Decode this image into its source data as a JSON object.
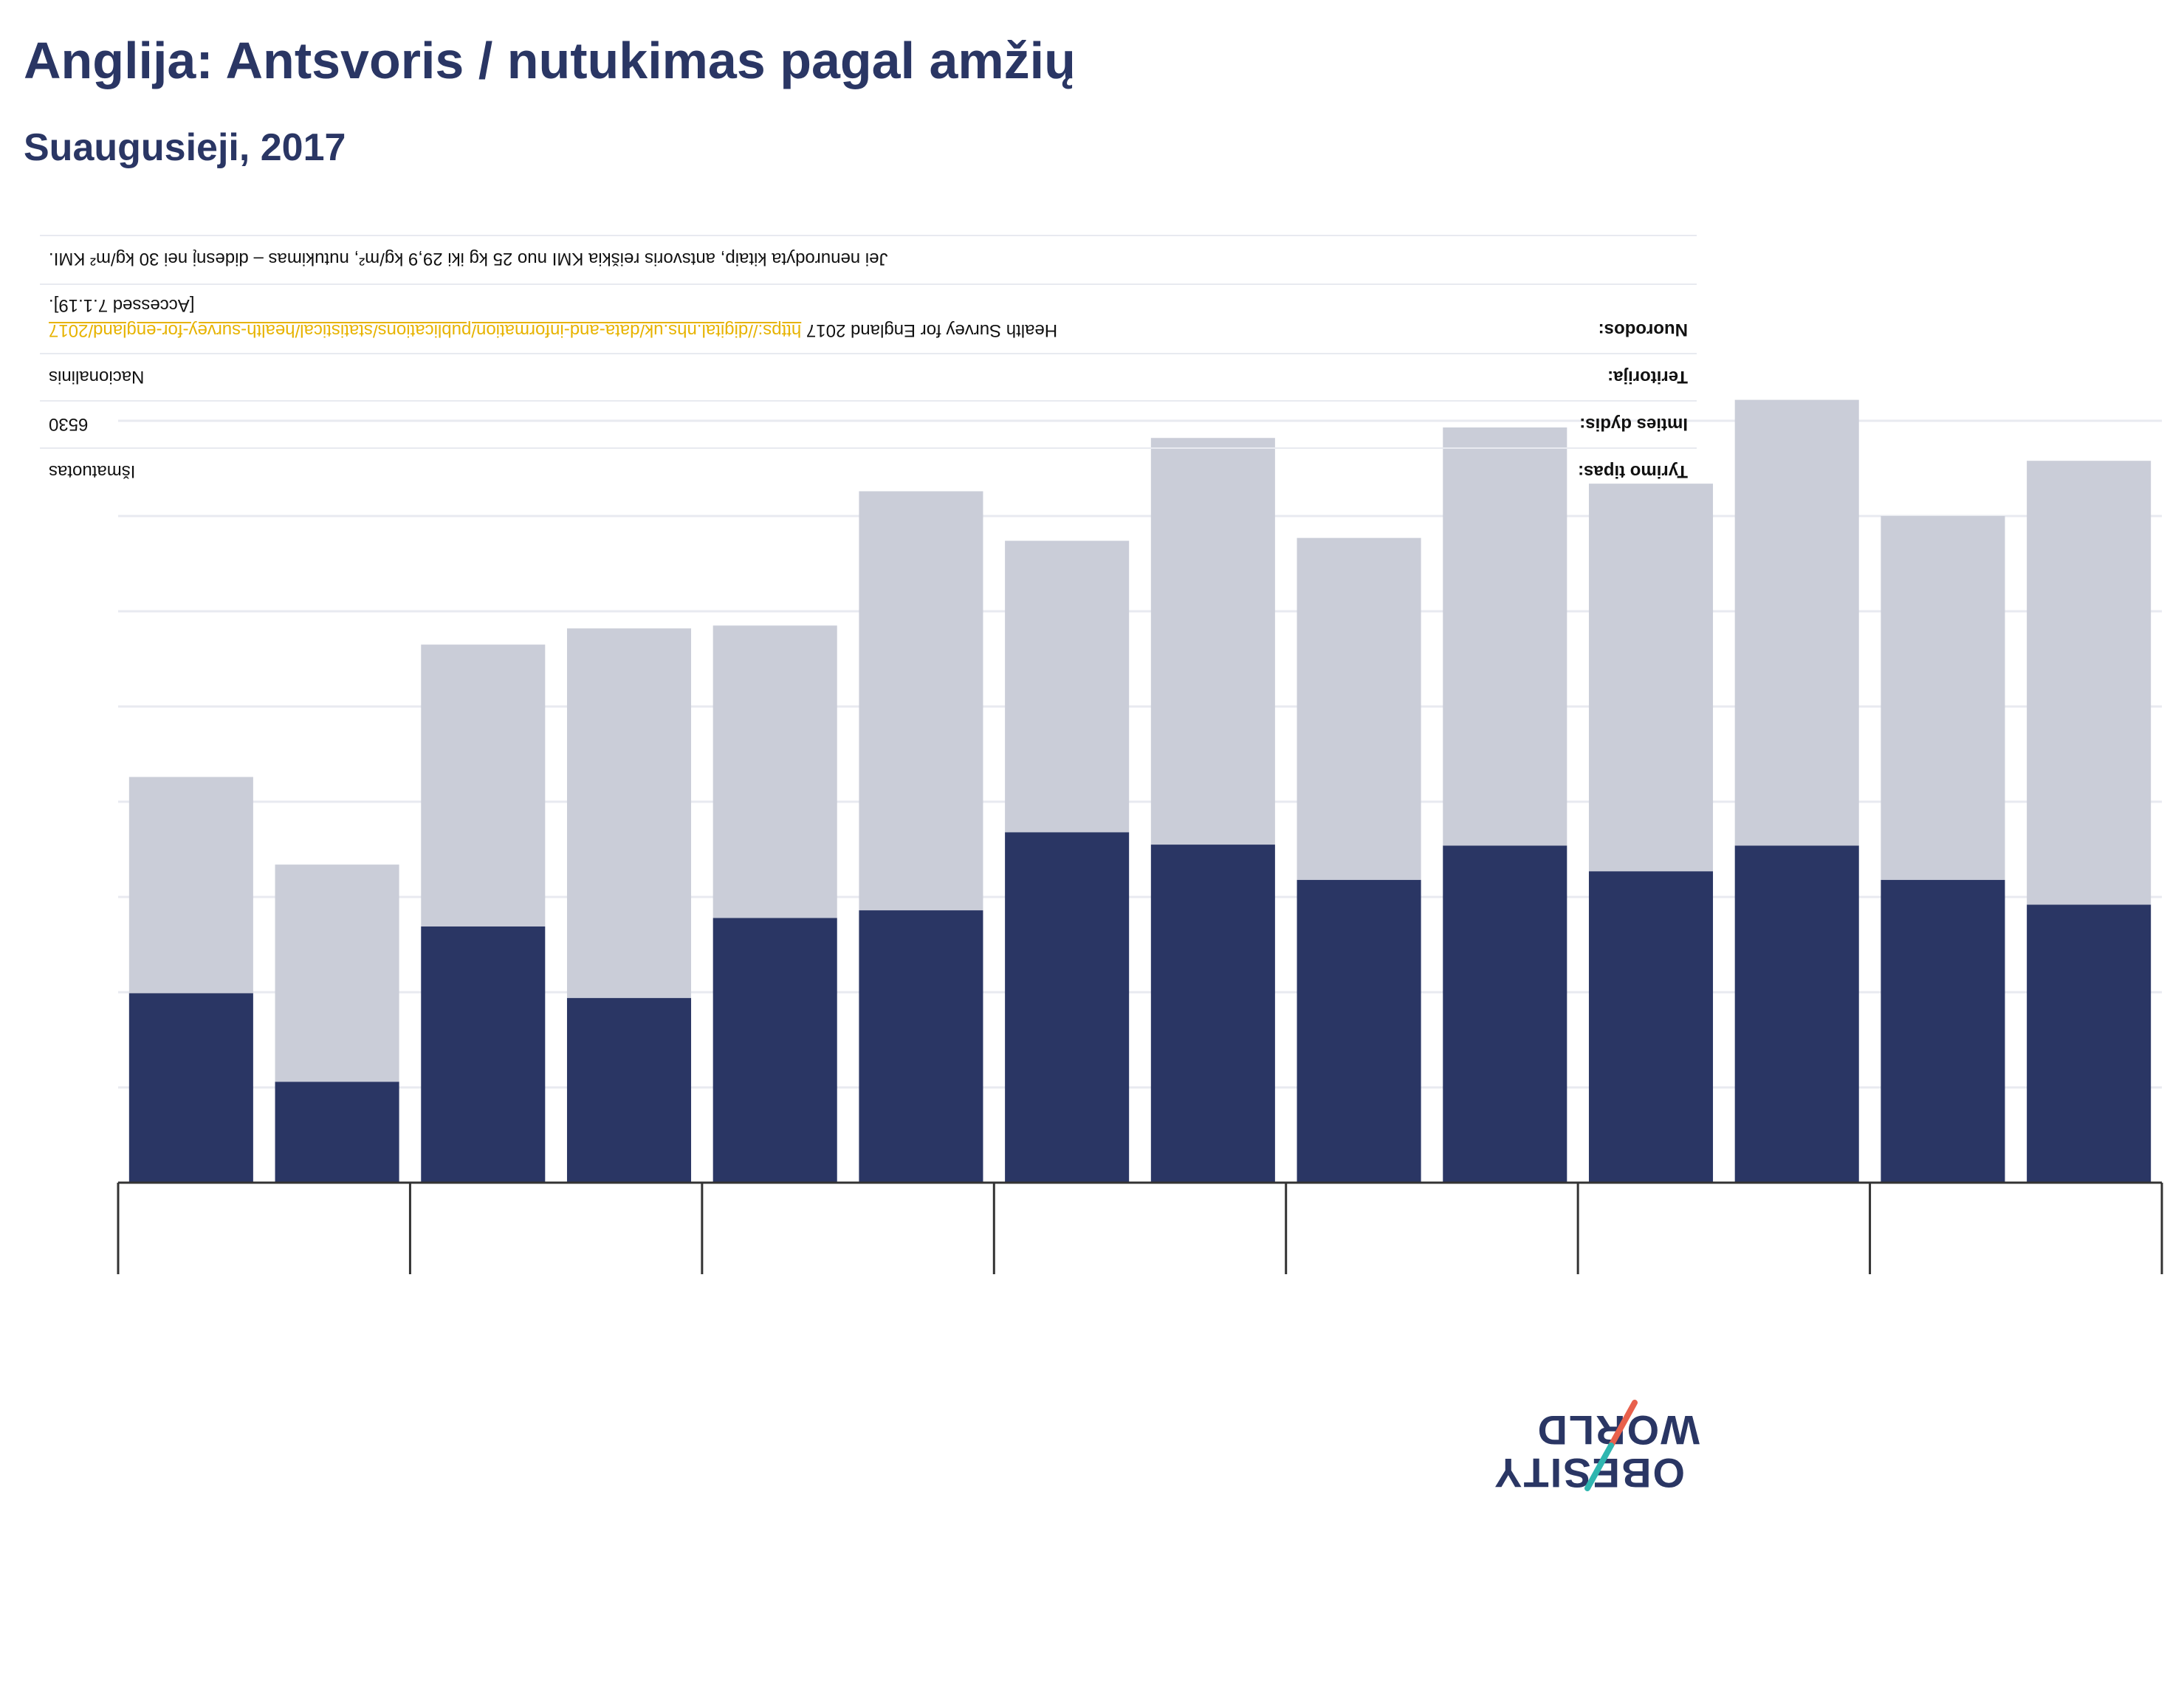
{
  "header": {
    "title": "Anglija: Antsvoris / nutukimas pagal amžių",
    "subtitle": "Suaugusieji, 2017"
  },
  "info_table": {
    "note": "Jei nenurodyta kitaip, antsvoris reiškia KMI nuo 25 kg iki 29,9 kg/m², nutukimas – didesnį nei 30 kg/m² KMI.",
    "references_label": "Nuorodos:",
    "references_text": "Health Survey for England 2017",
    "references_url": "https://digital.nhs.uk/data-and-information/publications/statistical/health-survey-for-england/2017",
    "references_accessed": "[Accessed 7.1.19].",
    "territory_label": "Teritorija:",
    "territory_value": "Nacionalinis",
    "sample_label": "Imties dydis:",
    "sample_value": "6530",
    "study_label": "Tyrimo tipas:",
    "study_value": "Išmatuotas"
  },
  "logo": {
    "line1": "OBESITY",
    "line2": "WORLD"
  },
  "colors": {
    "obesity": "#2a3664",
    "overweight": "#cacdd8",
    "axis": "#333333",
    "grid": "#e8eaf0",
    "link": "#e7b300"
  },
  "chart_data": {
    "type": "bar",
    "stacked": true,
    "categories": [
      "",
      "",
      "",
      "",
      "",
      "",
      "",
      "",
      "",
      "",
      "",
      "",
      "",
      ""
    ],
    "series": [
      {
        "color": "#2a3664",
        "values": [
          19.9,
          10.6,
          26.9,
          19.4,
          27.8,
          28.6,
          36.8,
          35.5,
          31.8,
          35.4,
          32.7,
          35.4,
          31.8,
          29.2
        ]
      },
      {
        "color": "#cacdd8",
        "values": [
          22.7,
          22.8,
          29.6,
          38.8,
          30.7,
          44.0,
          30.6,
          42.7,
          35.9,
          43.9,
          40.7,
          46.8,
          38.2,
          46.6
        ]
      }
    ],
    "ylim": [
      0,
      80
    ],
    "grid": true,
    "legend": "none"
  }
}
